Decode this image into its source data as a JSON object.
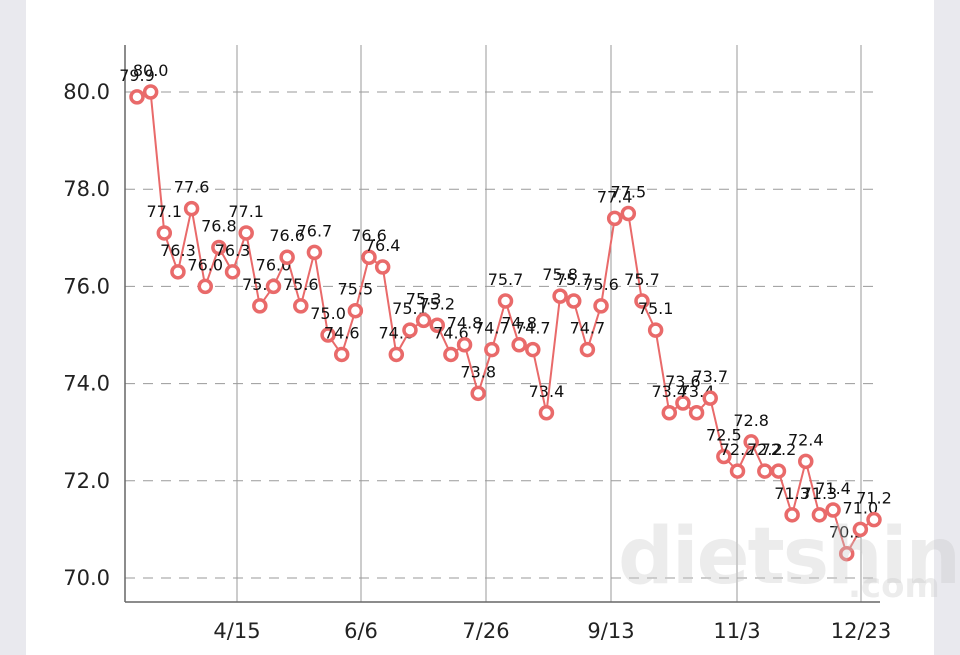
{
  "chart_data": {
    "type": "line",
    "title": "",
    "xlabel": "",
    "ylabel": "",
    "x_ticks": [
      "4/15",
      "6/6",
      "7/26",
      "9/13",
      "11/3",
      "12/23"
    ],
    "y_ticks": [
      "70.0",
      "72.0",
      "74.0",
      "76.0",
      "78.0",
      "80.0"
    ],
    "ylim": [
      69.5,
      81
    ],
    "grid": "horizontal-dashed and vertical at x ticks",
    "legend": "none",
    "series": [
      {
        "values": [
          79.9,
          80.0,
          77.1,
          76.3,
          77.6,
          76.0,
          76.8,
          76.3,
          77.1,
          75.6,
          76.0,
          76.6,
          75.6,
          76.7,
          75.0,
          74.6,
          75.5,
          76.6,
          76.4,
          74.6,
          75.1,
          75.3,
          75.2,
          74.6,
          74.8,
          73.8,
          74.7,
          75.7,
          74.8,
          74.7,
          73.4,
          75.8,
          75.7,
          74.7,
          75.6,
          77.4,
          77.5,
          75.7,
          75.1,
          73.4,
          73.6,
          73.4,
          73.7,
          72.5,
          72.2,
          72.8,
          72.2,
          72.2,
          71.3,
          72.4,
          71.3,
          71.4,
          70.5,
          71.0,
          71.2
        ]
      }
    ],
    "colors": {
      "line": "#e96a6a",
      "marker_fill": "#ffffff",
      "grid": "#9a9a9a"
    }
  },
  "watermark": {
    "name": "dietshin",
    "tld": ".com"
  }
}
